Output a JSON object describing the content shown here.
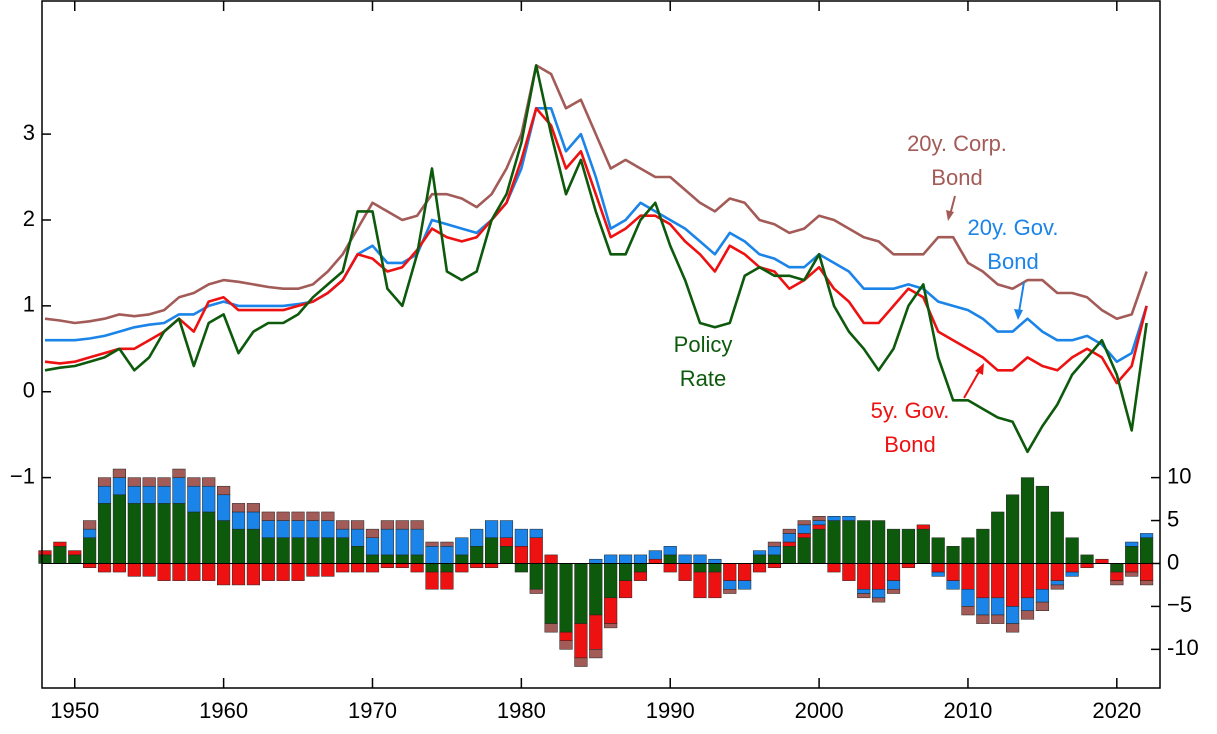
{
  "chart_data": [
    {
      "type": "line",
      "x": [
        1948,
        1949,
        1950,
        1951,
        1952,
        1953,
        1954,
        1955,
        1956,
        1957,
        1958,
        1959,
        1960,
        1961,
        1962,
        1963,
        1964,
        1965,
        1966,
        1967,
        1968,
        1969,
        1970,
        1971,
        1972,
        1973,
        1974,
        1975,
        1976,
        1977,
        1978,
        1979,
        1980,
        1981,
        1982,
        1983,
        1984,
        1985,
        1986,
        1987,
        1988,
        1989,
        1990,
        1991,
        1992,
        1993,
        1994,
        1995,
        1996,
        1997,
        1998,
        1999,
        2000,
        2001,
        2002,
        2003,
        2004,
        2005,
        2006,
        2007,
        2008,
        2009,
        2010,
        2011,
        2012,
        2013,
        2014,
        2015,
        2016,
        2017,
        2018,
        2019,
        2020,
        2021,
        2022
      ],
      "xlim": [
        1947.8,
        2022.9
      ],
      "xticks": [
        1950,
        1960,
        1970,
        1980,
        1990,
        2000,
        2010,
        2020
      ],
      "ylim": [
        -3.45,
        4.55
      ],
      "yticks": [
        {
          "value": -1,
          "label": "−1"
        },
        0,
        1,
        2,
        3
      ],
      "series": [
        {
          "name": "20y. Corp. Bond",
          "color": "#a35b57",
          "values": [
            0.85,
            0.83,
            0.8,
            0.82,
            0.85,
            0.9,
            0.88,
            0.9,
            0.95,
            1.1,
            1.15,
            1.25,
            1.3,
            1.28,
            1.25,
            1.22,
            1.2,
            1.2,
            1.25,
            1.4,
            1.6,
            1.9,
            2.2,
            2.1,
            2.0,
            2.05,
            2.3,
            2.3,
            2.25,
            2.15,
            2.3,
            2.6,
            3.0,
            3.8,
            3.7,
            3.3,
            3.4,
            3.0,
            2.6,
            2.7,
            2.6,
            2.5,
            2.5,
            2.35,
            2.2,
            2.1,
            2.25,
            2.2,
            2.0,
            1.95,
            1.85,
            1.9,
            2.05,
            2.0,
            1.9,
            1.8,
            1.75,
            1.6,
            1.6,
            1.6,
            1.8,
            1.8,
            1.5,
            1.4,
            1.25,
            1.2,
            1.3,
            1.3,
            1.15,
            1.15,
            1.1,
            0.95,
            0.85,
            0.9,
            1.4
          ]
        },
        {
          "name": "20y. Gov. Bond",
          "color": "#1b84e8",
          "values": [
            0.6,
            0.6,
            0.6,
            0.62,
            0.65,
            0.7,
            0.75,
            0.78,
            0.8,
            0.9,
            0.9,
            1.0,
            1.05,
            1.0,
            1.0,
            1.0,
            1.0,
            1.02,
            1.05,
            1.15,
            1.3,
            1.6,
            1.7,
            1.5,
            1.5,
            1.6,
            2.0,
            1.95,
            1.9,
            1.85,
            2.0,
            2.2,
            2.6,
            3.3,
            3.3,
            2.8,
            3.0,
            2.5,
            1.9,
            2.0,
            2.2,
            2.1,
            2.0,
            1.9,
            1.75,
            1.6,
            1.85,
            1.75,
            1.6,
            1.55,
            1.45,
            1.45,
            1.6,
            1.5,
            1.4,
            1.2,
            1.2,
            1.2,
            1.25,
            1.2,
            1.05,
            1.0,
            0.95,
            0.85,
            0.7,
            0.7,
            0.85,
            0.7,
            0.6,
            0.6,
            0.65,
            0.55,
            0.35,
            0.45,
            1.0
          ]
        },
        {
          "name": "5y. Gov. Bond",
          "color": "#ee1111",
          "values": [
            0.35,
            0.33,
            0.35,
            0.4,
            0.45,
            0.5,
            0.5,
            0.6,
            0.7,
            0.85,
            0.7,
            1.05,
            1.1,
            0.95,
            0.95,
            0.95,
            0.95,
            1.0,
            1.05,
            1.15,
            1.3,
            1.6,
            1.55,
            1.4,
            1.45,
            1.65,
            1.9,
            1.8,
            1.75,
            1.8,
            2.0,
            2.2,
            2.7,
            3.3,
            3.1,
            2.6,
            2.8,
            2.3,
            1.8,
            1.9,
            2.05,
            2.05,
            1.95,
            1.75,
            1.6,
            1.4,
            1.7,
            1.6,
            1.45,
            1.4,
            1.2,
            1.3,
            1.45,
            1.2,
            1.05,
            0.8,
            0.8,
            1.0,
            1.2,
            1.1,
            0.7,
            0.6,
            0.5,
            0.4,
            0.25,
            0.25,
            0.4,
            0.3,
            0.25,
            0.4,
            0.5,
            0.4,
            0.1,
            0.3,
            1.0
          ]
        },
        {
          "name": "Policy Rate",
          "color": "#0d5a0d",
          "values": [
            0.25,
            0.28,
            0.3,
            0.35,
            0.4,
            0.5,
            0.25,
            0.4,
            0.7,
            0.85,
            0.3,
            0.8,
            0.9,
            0.45,
            0.7,
            0.8,
            0.8,
            0.9,
            1.1,
            1.25,
            1.4,
            2.1,
            2.1,
            1.2,
            1.0,
            1.6,
            2.6,
            1.4,
            1.3,
            1.4,
            2.0,
            2.3,
            2.9,
            3.8,
            3.0,
            2.3,
            2.7,
            2.1,
            1.6,
            1.6,
            2.0,
            2.2,
            1.7,
            1.3,
            0.8,
            0.75,
            0.8,
            1.35,
            1.45,
            1.35,
            1.35,
            1.3,
            1.6,
            1.0,
            0.7,
            0.5,
            0.25,
            0.5,
            1.0,
            1.25,
            0.4,
            -0.1,
            -0.1,
            -0.2,
            -0.3,
            -0.35,
            -0.7,
            -0.4,
            -0.15,
            0.2,
            0.4,
            0.6,
            0.2,
            -0.45,
            0.8
          ]
        }
      ],
      "annotations": [
        {
          "lines": [
            "20y. Corp.",
            "Bond"
          ],
          "color": "#a35b57"
        },
        {
          "lines": [
            "20y. Gov.",
            "Bond"
          ],
          "color": "#1b84e8"
        },
        {
          "lines": [
            "Policy",
            "Rate"
          ],
          "color": "#0d5a0d"
        },
        {
          "lines": [
            "5y. Gov.",
            "Bond"
          ],
          "color": "#ee1111"
        }
      ]
    },
    {
      "type": "bar",
      "stacked": true,
      "axis_side": "right",
      "x": [
        1948,
        1949,
        1950,
        1951,
        1952,
        1953,
        1954,
        1955,
        1956,
        1957,
        1958,
        1959,
        1960,
        1961,
        1962,
        1963,
        1964,
        1965,
        1966,
        1967,
        1968,
        1969,
        1970,
        1971,
        1972,
        1973,
        1974,
        1975,
        1976,
        1977,
        1978,
        1979,
        1980,
        1981,
        1982,
        1983,
        1984,
        1985,
        1986,
        1987,
        1988,
        1989,
        1990,
        1991,
        1992,
        1993,
        1994,
        1995,
        1996,
        1997,
        1998,
        1999,
        2000,
        2001,
        2002,
        2003,
        2004,
        2005,
        2006,
        2007,
        2008,
        2009,
        2010,
        2011,
        2012,
        2013,
        2014,
        2015,
        2016,
        2017,
        2018,
        2019,
        2020,
        2021,
        2022
      ],
      "xlim": [
        1947.8,
        2022.9
      ],
      "ylim": [
        -14.5,
        65.5
      ],
      "yticks": [
        -10,
        {
          "value": -5,
          "label": "−5"
        },
        0,
        5,
        10
      ],
      "series": [
        {
          "name": "Policy Rate",
          "color": "#0d5a0d",
          "values": [
            1,
            2,
            1,
            3,
            7,
            8,
            7,
            7,
            7,
            7,
            6,
            6,
            5,
            4,
            4,
            3,
            3,
            3,
            3,
            3,
            3,
            2,
            1,
            1,
            1,
            1,
            -1,
            -1,
            1,
            2,
            3,
            2,
            -1,
            -3,
            -7,
            -8,
            -7,
            -6,
            -4,
            -2,
            -1,
            0,
            1,
            0,
            -1,
            -1,
            0,
            0,
            1,
            1,
            2,
            3,
            4,
            5,
            5,
            5,
            5,
            4,
            4,
            4,
            3,
            2,
            3,
            4,
            6,
            8,
            10,
            9,
            6,
            3,
            1,
            0,
            -1,
            2,
            3
          ]
        },
        {
          "name": "5y. Gov. Bond",
          "color": "#ee1111",
          "values": [
            0.5,
            0.5,
            0.5,
            -0.5,
            -1,
            -1,
            -1.5,
            -1.5,
            -2,
            -2,
            -2,
            -2,
            -2.5,
            -2.5,
            -2.5,
            -2,
            -2,
            -2,
            -1.5,
            -1.5,
            -1,
            -1,
            -1,
            -0.5,
            -0.5,
            -1,
            -2,
            -2,
            -1,
            -0.5,
            -0.5,
            1,
            2,
            3,
            1,
            -1,
            -4,
            -4,
            -3,
            -2,
            -1,
            0.5,
            -1,
            -2,
            -3,
            -3,
            -2,
            -2,
            -1,
            -0.5,
            0.5,
            0.5,
            0.5,
            -1,
            -2,
            -3,
            -3,
            -2,
            -0.5,
            0.5,
            -1,
            -2,
            -3,
            -4,
            -4,
            -5,
            -4,
            -3,
            -2,
            -1,
            -0.5,
            0.5,
            -1,
            -1,
            -2
          ]
        },
        {
          "name": "20y. Gov. Bond",
          "color": "#1b84e8",
          "values": [
            0,
            0,
            0,
            1,
            2,
            2,
            2,
            2,
            2,
            3,
            3,
            3,
            3,
            2,
            2,
            2,
            2,
            2,
            2,
            2,
            1,
            2,
            2,
            3,
            3,
            3,
            2,
            2,
            2,
            2,
            2,
            2,
            2,
            1,
            0,
            0,
            0,
            0.5,
            1,
            1,
            1,
            1,
            1,
            1,
            1,
            0.5,
            -1,
            -1,
            0.5,
            1,
            1,
            1,
            0.5,
            0.5,
            0.5,
            -0.5,
            -1,
            -1,
            0,
            0,
            -0.5,
            -1,
            -2,
            -2,
            -2,
            -2,
            -1.5,
            -1.5,
            -0.5,
            -0.5,
            0,
            0,
            0,
            0.5,
            0.5
          ]
        },
        {
          "name": "20y. Corp. Bond",
          "color": "#a35b57",
          "values": [
            0,
            0,
            0,
            1,
            1,
            1,
            1,
            1,
            1,
            1,
            1,
            1,
            1,
            1,
            1,
            1,
            1,
            1,
            1,
            1,
            1,
            1,
            1,
            1,
            1,
            1,
            0.5,
            0.5,
            0,
            0,
            0,
            0,
            0,
            -0.5,
            -1,
            -1,
            -1,
            -1,
            -0.5,
            0,
            0,
            0,
            0,
            0,
            0,
            0,
            -0.5,
            0,
            0,
            0.5,
            0.5,
            0.5,
            0.5,
            0,
            0,
            -0.5,
            -0.5,
            -0.5,
            0,
            0,
            0,
            0,
            -1,
            -1,
            -1,
            -1,
            -1,
            -1,
            -0.5,
            0,
            0,
            0,
            -0.5,
            -0.5,
            -0.5
          ]
        }
      ]
    }
  ]
}
